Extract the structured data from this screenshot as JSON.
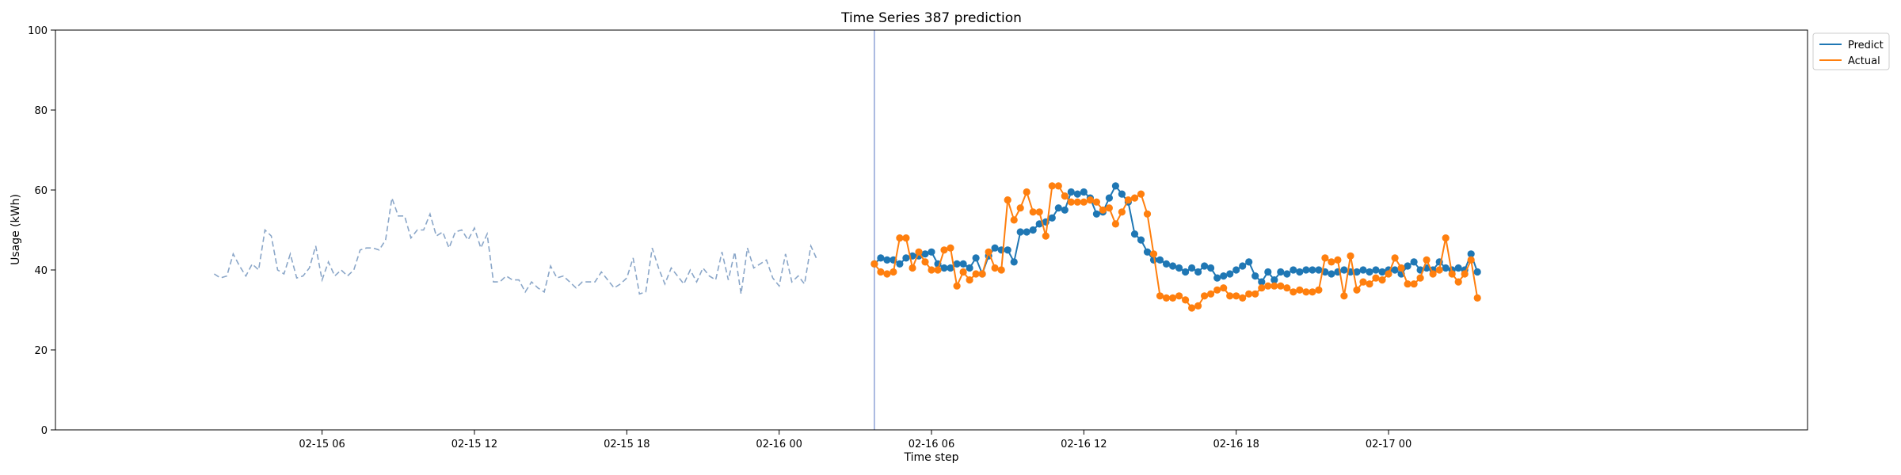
{
  "chart_data": {
    "type": "line",
    "title": "Time Series 387 prediction",
    "xlabel": "Time step",
    "ylabel": "Usage (kWh)",
    "ylim": [
      0,
      100
    ],
    "xlim_hours": [
      -4.5,
      64.5
    ],
    "x_ticks": [
      {
        "label": "02-15 06",
        "hour": 6
      },
      {
        "label": "02-15 12",
        "hour": 12
      },
      {
        "label": "02-15 18",
        "hour": 18
      },
      {
        "label": "02-16 00",
        "hour": 24
      },
      {
        "label": "02-16 06",
        "hour": 30
      },
      {
        "label": "02-16 12",
        "hour": 36
      },
      {
        "label": "02-16 18",
        "hour": 42
      },
      {
        "label": "02-17 00",
        "hour": 48
      }
    ],
    "y_ticks": [
      0,
      20,
      40,
      60,
      80,
      100
    ],
    "legend_position": "outside top-right",
    "forecast_start_hour": 27.75,
    "history": {
      "start_hour": 1.75,
      "step_hours": 0.25,
      "color": "#8aa6c8",
      "style": "dashed",
      "values": [
        39,
        38,
        38.5,
        44,
        41,
        38.5,
        41.5,
        40,
        50,
        48.5,
        40,
        39,
        44,
        38,
        38.5,
        40.5,
        46,
        37.5,
        42,
        38.5,
        40,
        38.5,
        40,
        45,
        45.5,
        45.5,
        45,
        47.5,
        58,
        53.5,
        53.5,
        48,
        50,
        50,
        54,
        48.5,
        49.5,
        45.5,
        49.5,
        50,
        47.5,
        50.5,
        45.5,
        49,
        37,
        37,
        38.5,
        37.5,
        37.5,
        34.5,
        37,
        35.5,
        34.5,
        41,
        38,
        38.5,
        37,
        35.5,
        37,
        37,
        37,
        39.5,
        37.5,
        35.5,
        36.5,
        38,
        43,
        34,
        34.5,
        45.5,
        40.5,
        36.5,
        40.5,
        38.5,
        36.5,
        40,
        37,
        40.5,
        38.5,
        37.5,
        44.5,
        37.5,
        44.5,
        34,
        45.5,
        40.5,
        41.5,
        42.5,
        38,
        36,
        44,
        37,
        38.5,
        36.5,
        46,
        42.5
      ]
    },
    "series": [
      {
        "name": "Predict",
        "color": "#1f77b4",
        "start_hour": 27.75,
        "step_hours": 0.25,
        "values": [
          41.5,
          43,
          42.5,
          42.5,
          41.5,
          43,
          43.5,
          43.5,
          44,
          44.5,
          41.5,
          40.5,
          40.5,
          41.5,
          41.5,
          40.5,
          43,
          39,
          43.5,
          45.5,
          45,
          45,
          42,
          49.5,
          49.5,
          50,
          51.5,
          52,
          53,
          55.5,
          55,
          59.5,
          59,
          59.5,
          58,
          54,
          54.5,
          58,
          61,
          59,
          57,
          49,
          47.5,
          44.5,
          42.5,
          42.5,
          41.5,
          41,
          40.5,
          39.5,
          40.5,
          39.5,
          41,
          40.5,
          38,
          38.5,
          39,
          40,
          41,
          42,
          38.5,
          37,
          39.5,
          37.5,
          39.5,
          39,
          40,
          39.5,
          40,
          40,
          40,
          39.5,
          39,
          39.5,
          40,
          39.5,
          39.5,
          40,
          39.5,
          40,
          39.5,
          40,
          40,
          39,
          41,
          42,
          40,
          40.5,
          40,
          42,
          40.5,
          40,
          40.5,
          40,
          44,
          39.5
        ]
      },
      {
        "name": "Actual",
        "color": "#ff7f0e",
        "start_hour": 27.75,
        "step_hours": 0.25,
        "values": [
          41.5,
          39.5,
          39,
          39.5,
          48,
          48,
          40.5,
          44.5,
          42,
          40,
          40,
          45,
          45.5,
          36,
          39.5,
          37.5,
          39,
          39,
          44.5,
          40.5,
          40,
          57.5,
          52.5,
          55.5,
          59.5,
          54.5,
          54.5,
          48.5,
          61,
          61,
          58.5,
          57,
          57,
          57,
          57.5,
          57,
          55,
          55.5,
          51.5,
          54.5,
          57.5,
          58,
          59,
          54,
          44,
          33.5,
          33,
          33,
          33.5,
          32.5,
          30.5,
          31,
          33.5,
          34,
          35,
          35.5,
          33.5,
          33.5,
          33,
          34,
          34,
          35.5,
          36,
          36,
          36,
          35.5,
          34.5,
          35,
          34.5,
          34.5,
          35,
          43,
          42,
          42.5,
          33.5,
          43.5,
          35,
          37,
          36.5,
          38,
          37.5,
          39,
          43,
          40.5,
          36.5,
          36.5,
          38,
          42.5,
          39,
          40,
          48,
          39,
          37,
          39,
          42.5,
          33
        ]
      }
    ]
  }
}
